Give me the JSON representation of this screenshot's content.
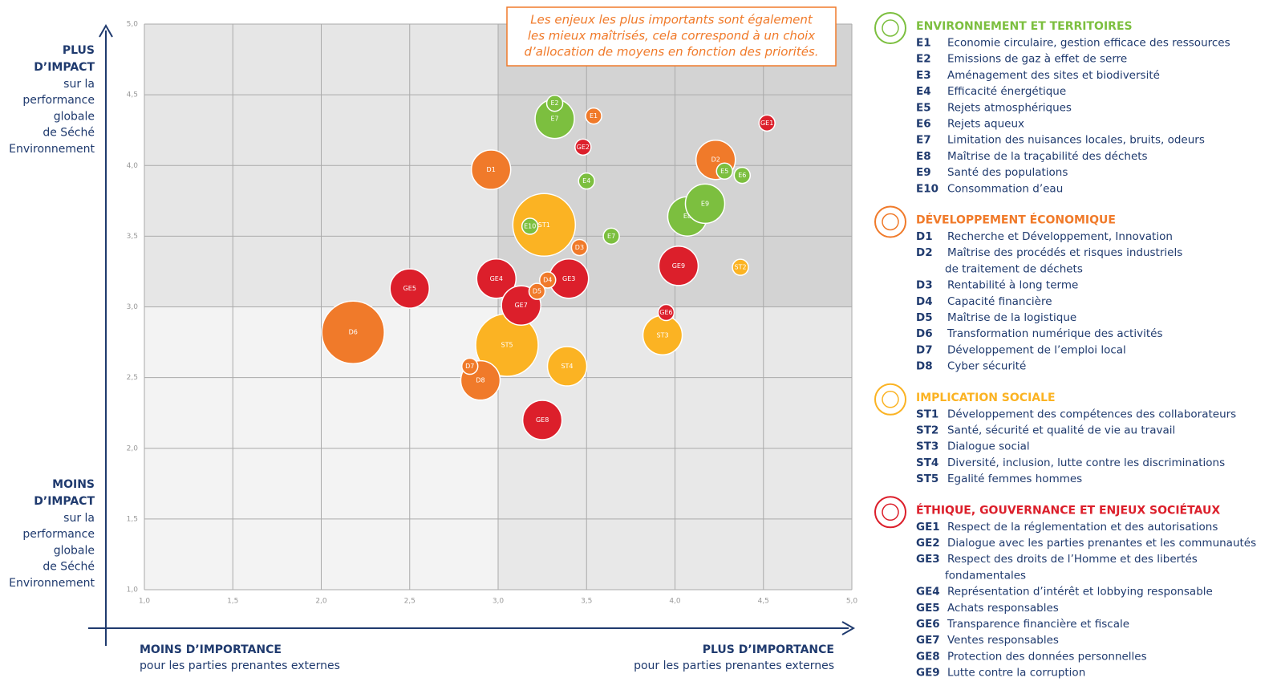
{
  "chart_data": {
    "type": "scatter",
    "annotation": [
      "Les enjeux les plus importants sont également",
      "les mieux maîtrisés, cela correspond à un choix",
      "d’allocation de moyens en fonction des priorités."
    ],
    "y_axis_top": [
      "PLUS",
      "D’IMPACT"
    ],
    "y_axis_top_sub": [
      "sur la",
      "performance",
      "globale",
      "de Séché",
      "Environnement"
    ],
    "y_axis_bottom": [
      "MOINS",
      "D’IMPACT"
    ],
    "y_axis_bottom_sub": [
      "sur la",
      "performance",
      "globale",
      "de Séché",
      "Environnement"
    ],
    "x_axis_left": [
      "MOINS D’IMPORTANCE",
      "pour les parties prenantes externes"
    ],
    "x_axis_right": [
      "PLUS D’IMPORTANCE",
      "pour les parties prenantes externes"
    ],
    "xlim": [
      1,
      5
    ],
    "ylim": [
      1,
      5
    ],
    "xticks": [
      {
        "value": 1,
        "label": "1,0"
      },
      {
        "value": 1.5,
        "label": "1,5"
      },
      {
        "value": 2,
        "label": "2,0"
      },
      {
        "value": 2.5,
        "label": "2,5"
      },
      {
        "value": 3,
        "label": "3,0"
      },
      {
        "value": 3.5,
        "label": "3,5"
      },
      {
        "value": 4,
        "label": "4,0"
      },
      {
        "value": 4.5,
        "label": "4,5"
      },
      {
        "value": 5,
        "label": "5,0"
      }
    ],
    "yticks": [
      {
        "value": 1,
        "label": "1,0"
      },
      {
        "value": 1.5,
        "label": "1,5"
      },
      {
        "value": 2,
        "label": "2,0"
      },
      {
        "value": 2.5,
        "label": "2,5"
      },
      {
        "value": 3,
        "label": "3,0"
      },
      {
        "value": 3.5,
        "label": "3,5"
      },
      {
        "value": 4,
        "label": "4,0"
      },
      {
        "value": 4.5,
        "label": "4,5"
      },
      {
        "value": 5,
        "label": "5,0"
      }
    ],
    "grid": true,
    "series": [
      {
        "name": "ENVIRONNEMENT ET TERRITOIRES",
        "color": "#7cbf3f",
        "labels": [
          "E2",
          "E7",
          "E4",
          "E5",
          "E6",
          "E10",
          "E8",
          "E9",
          "E7"
        ],
        "x": [
          3.32,
          3.32,
          3.5,
          4.28,
          4.38,
          3.18,
          4.07,
          4.17,
          3.64
        ],
        "values": [
          4.44,
          4.33,
          3.89,
          3.96,
          3.93,
          3.57,
          3.64,
          3.73,
          3.5
        ],
        "sizes": [
          1,
          2,
          1,
          1,
          1,
          1,
          2,
          2,
          1
        ],
        "items": [
          {
            "code": "E1",
            "text": "Economie circulaire, gestion efficace des ressources"
          },
          {
            "code": "E2",
            "text": "Emissions de gaz à effet de serre"
          },
          {
            "code": "E3",
            "text": "Aménagement des sites et biodiversité"
          },
          {
            "code": "E4",
            "text": "Efficacité énergétique"
          },
          {
            "code": "E5",
            "text": "Rejets atmosphériques"
          },
          {
            "code": "E6",
            "text": "Rejets aqueux"
          },
          {
            "code": "E7",
            "text": "Limitation des nuisances locales, bruits, odeurs"
          },
          {
            "code": "E8",
            "text": "Maîtrise de la traçabilité des déchets"
          },
          {
            "code": "E9",
            "text": "Santé des populations"
          },
          {
            "code": "E10",
            "text": "Consommation d’eau"
          }
        ]
      },
      {
        "name": "DÉVELOPPEMENT ÉCONOMIQUE",
        "color": "#f07a2a",
        "labels": [
          "E1",
          "D1",
          "D2",
          "D3",
          "D4",
          "D5",
          "D6",
          "D7",
          "D8"
        ],
        "x": [
          3.54,
          2.96,
          4.23,
          3.46,
          3.28,
          3.22,
          2.18,
          2.84,
          2.9
        ],
        "values": [
          4.35,
          3.97,
          4.04,
          3.42,
          3.19,
          3.11,
          2.82,
          2.58,
          2.48
        ],
        "sizes": [
          1,
          2,
          2,
          1,
          1,
          1,
          3,
          1,
          2
        ],
        "items": [
          {
            "code": "D1",
            "text": "Recherche et Développement, Innovation"
          },
          {
            "code": "D2",
            "text": [
              "Maîtrise des procédés et risques industriels",
              "de traitement de déchets"
            ]
          },
          {
            "code": "D3",
            "text": "Rentabilité à long terme"
          },
          {
            "code": "D4",
            "text": "Capacité financière"
          },
          {
            "code": "D5",
            "text": "Maîtrise de la logistique"
          },
          {
            "code": "D6",
            "text": "Transformation numérique des activités"
          },
          {
            "code": "D7",
            "text": "Développement de l’emploi local"
          },
          {
            "code": "D8",
            "text": "Cyber sécurité"
          }
        ]
      },
      {
        "name": "IMPLICATION SOCIALE",
        "color": "#fbb323",
        "labels": [
          "ST1",
          "ST2",
          "ST3",
          "ST4",
          "ST5"
        ],
        "x": [
          3.26,
          4.37,
          3.93,
          3.39,
          3.05
        ],
        "values": [
          3.58,
          3.28,
          2.8,
          2.58,
          2.73
        ],
        "sizes": [
          3,
          1,
          2,
          2,
          3
        ],
        "items": [
          {
            "code": "ST1",
            "text": "Développement des compétences des collaborateurs"
          },
          {
            "code": "ST2",
            "text": "Santé, sécurité et qualité de vie au travail"
          },
          {
            "code": "ST3",
            "text": "Dialogue social"
          },
          {
            "code": "ST4",
            "text": "Diversité, inclusion, lutte contre les discriminations"
          },
          {
            "code": "ST5",
            "text": "Egalité femmes hommes"
          }
        ]
      },
      {
        "name": "ÉTHIQUE, GOUVERNANCE ET ENJEUX SOCIÉTAUX",
        "color": "#dc1f2b",
        "labels": [
          "GE1",
          "GE2",
          "GE9",
          "GE4",
          "GE3",
          "GE5",
          "GE7",
          "GE6",
          "GE8"
        ],
        "x": [
          4.52,
          3.48,
          4.02,
          2.99,
          3.4,
          2.5,
          3.13,
          3.95,
          3.25
        ],
        "values": [
          4.3,
          4.13,
          3.29,
          3.2,
          3.2,
          3.13,
          3.01,
          2.96,
          2.2
        ],
        "sizes": [
          1,
          1,
          2,
          2,
          2,
          2,
          2,
          1,
          2
        ],
        "items": [
          {
            "code": "GE1",
            "text": "Respect de la réglementation et des autorisations"
          },
          {
            "code": "GE2",
            "text": "Dialogue avec les parties prenantes et les communautés"
          },
          {
            "code": "GE3",
            "text": [
              "Respect des droits de l’Homme et des libertés",
              "fondamentales"
            ]
          },
          {
            "code": "GE4",
            "text": "Représentation d’intérêt et lobbying responsable"
          },
          {
            "code": "GE5",
            "text": "Achats responsables"
          },
          {
            "code": "GE6",
            "text": "Transparence financière et fiscale"
          },
          {
            "code": "GE7",
            "text": "Ventes responsables"
          },
          {
            "code": "GE8",
            "text": "Protection des données personnelles"
          },
          {
            "code": "GE9",
            "text": "Lutte contre la corruption"
          }
        ]
      }
    ]
  }
}
